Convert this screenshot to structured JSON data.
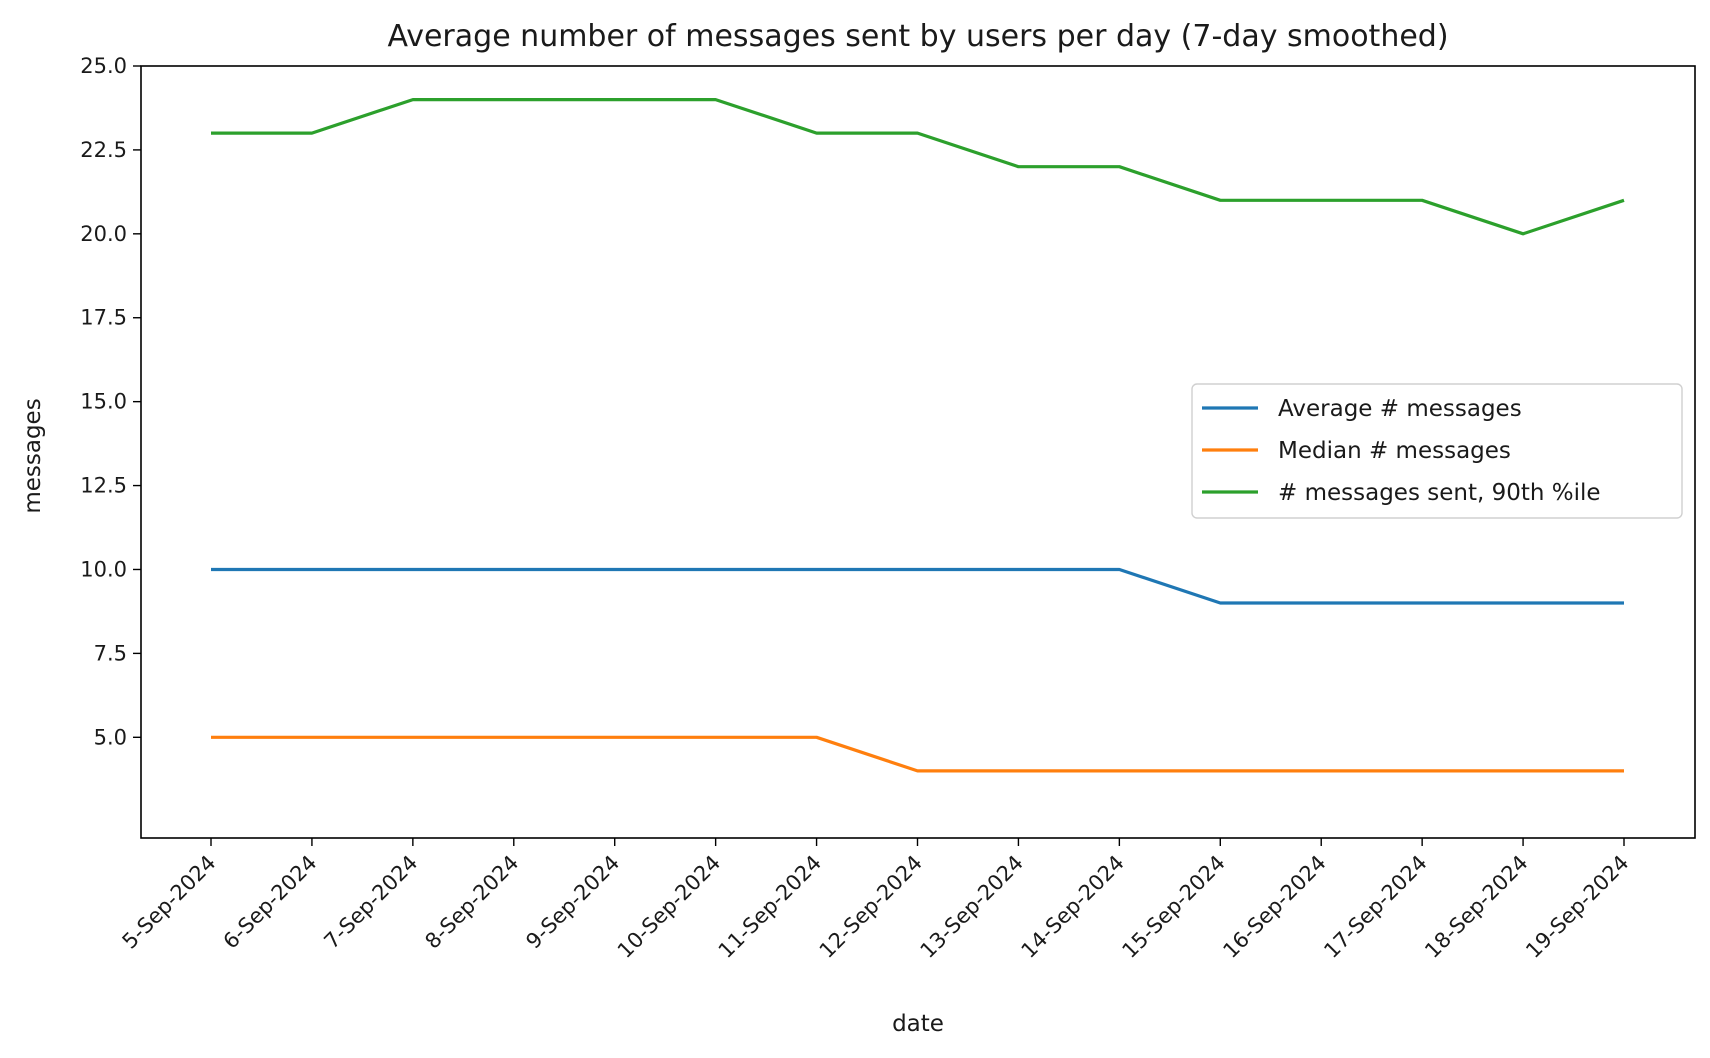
{
  "chart_data": {
    "type": "line",
    "title": "Average number of messages sent by users per day (7-day smoothed)",
    "xlabel": "date",
    "ylabel": "messages",
    "ylim": [
      2.0,
      25.0
    ],
    "yticks": [
      "5.0",
      "7.5",
      "10.0",
      "12.5",
      "15.0",
      "17.5",
      "20.0",
      "22.5",
      "25.0"
    ],
    "ytick_values": [
      5.0,
      7.5,
      10.0,
      12.5,
      15.0,
      17.5,
      20.0,
      22.5,
      25.0
    ],
    "categories": [
      "5-Sep-2024",
      "6-Sep-2024",
      "7-Sep-2024",
      "8-Sep-2024",
      "9-Sep-2024",
      "10-Sep-2024",
      "11-Sep-2024",
      "12-Sep-2024",
      "13-Sep-2024",
      "14-Sep-2024",
      "15-Sep-2024",
      "16-Sep-2024",
      "17-Sep-2024",
      "18-Sep-2024",
      "19-Sep-2024"
    ],
    "grid": false,
    "legend_position": "center-right",
    "series": [
      {
        "name": "Average # messages",
        "color": "#1f77b4",
        "values": [
          10,
          10,
          10,
          10,
          10,
          10,
          10,
          10,
          10,
          10,
          9,
          9,
          9,
          9,
          9
        ]
      },
      {
        "name": "Median # messages",
        "color": "#ff7f0e",
        "values": [
          5,
          5,
          5,
          5,
          5,
          5,
          5,
          4,
          4,
          4,
          4,
          4,
          4,
          4,
          4
        ]
      },
      {
        "name": "# messages sent, 90th %ile",
        "color": "#2ca02c",
        "values": [
          23,
          23,
          24,
          24,
          24,
          24,
          23,
          23,
          22,
          22,
          21,
          21,
          21,
          20,
          21
        ]
      }
    ]
  }
}
